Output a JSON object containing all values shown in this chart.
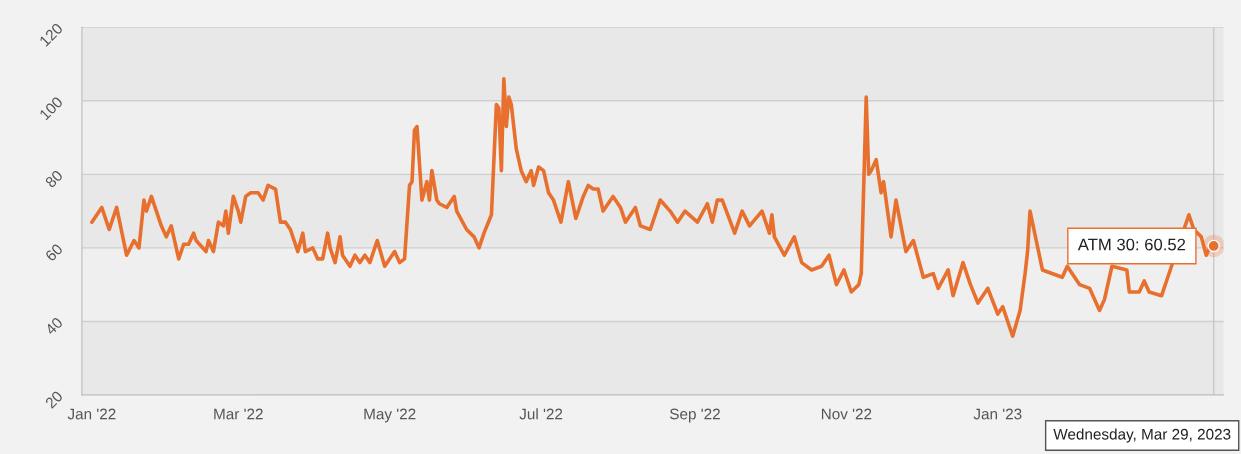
{
  "chart_data": {
    "type": "line",
    "x": [
      "2022-01-01",
      "2022-01-05",
      "2022-01-08",
      "2022-01-11",
      "2022-01-15",
      "2022-01-18",
      "2022-01-20",
      "2022-01-22",
      "2022-01-23",
      "2022-01-25",
      "2022-01-29",
      "2022-01-31",
      "2022-02-02",
      "2022-02-05",
      "2022-02-07",
      "2022-02-09",
      "2022-02-11",
      "2022-02-12",
      "2022-02-16",
      "2022-02-17",
      "2022-02-19",
      "2022-02-21",
      "2022-02-23",
      "2022-02-24",
      "2022-02-25",
      "2022-02-27",
      "2022-03-01",
      "2022-03-02",
      "2022-03-04",
      "2022-03-06",
      "2022-03-09",
      "2022-03-11",
      "2022-03-13",
      "2022-03-16",
      "2022-03-18",
      "2022-03-20",
      "2022-03-22",
      "2022-03-25",
      "2022-03-27",
      "2022-03-28",
      "2022-03-31",
      "2022-04-02",
      "2022-04-04",
      "2022-04-06",
      "2022-04-07",
      "2022-04-09",
      "2022-04-11",
      "2022-04-12",
      "2022-04-15",
      "2022-04-17",
      "2022-04-19",
      "2022-04-21",
      "2022-04-23",
      "2022-04-26",
      "2022-04-29",
      "2022-05-03",
      "2022-05-05",
      "2022-05-07",
      "2022-05-09",
      "2022-05-10",
      "2022-05-11",
      "2022-05-12",
      "2022-05-14",
      "2022-05-16",
      "2022-05-17",
      "2022-05-18",
      "2022-05-20",
      "2022-05-21",
      "2022-05-24",
      "2022-05-27",
      "2022-05-28",
      "2022-06-01",
      "2022-06-04",
      "2022-06-06",
      "2022-06-08",
      "2022-06-11",
      "2022-06-13",
      "2022-06-14",
      "2022-06-15",
      "2022-06-16",
      "2022-06-17",
      "2022-06-18",
      "2022-06-19",
      "2022-06-21",
      "2022-06-23",
      "2022-06-25",
      "2022-06-27",
      "2022-06-28",
      "2022-06-30",
      "2022-07-02",
      "2022-07-04",
      "2022-07-06",
      "2022-07-09",
      "2022-07-12",
      "2022-07-15",
      "2022-07-18",
      "2022-07-20",
      "2022-07-22",
      "2022-07-24",
      "2022-07-26",
      "2022-07-30",
      "2022-08-02",
      "2022-08-04",
      "2022-08-08",
      "2022-08-10",
      "2022-08-14",
      "2022-08-18",
      "2022-08-22",
      "2022-08-25",
      "2022-08-28",
      "2022-09-02",
      "2022-09-06",
      "2022-09-08",
      "2022-09-10",
      "2022-09-12",
      "2022-09-17",
      "2022-09-20",
      "2022-09-23",
      "2022-09-28",
      "2022-10-01",
      "2022-10-02",
      "2022-10-03",
      "2022-10-07",
      "2022-10-11",
      "2022-10-14",
      "2022-10-18",
      "2022-10-22",
      "2022-10-25",
      "2022-10-28",
      "2022-10-31",
      "2022-11-03",
      "2022-11-06",
      "2022-11-07",
      "2022-11-09",
      "2022-11-10",
      "2022-11-11",
      "2022-11-13",
      "2022-11-15",
      "2022-11-16",
      "2022-11-19",
      "2022-11-21",
      "2022-11-25",
      "2022-11-28",
      "2022-12-02",
      "2022-12-06",
      "2022-12-08",
      "2022-12-12",
      "2022-12-14",
      "2022-12-18",
      "2022-12-21",
      "2022-12-24",
      "2022-12-28",
      "2023-01-01",
      "2023-01-03",
      "2023-01-07",
      "2023-01-10",
      "2023-01-12",
      "2023-01-13",
      "2023-01-14",
      "2023-01-19",
      "2023-01-27",
      "2023-01-29",
      "2023-02-03",
      "2023-02-07",
      "2023-02-11",
      "2023-02-13",
      "2023-02-16",
      "2023-02-22",
      "2023-02-23",
      "2023-02-27",
      "2023-03-01",
      "2023-03-03",
      "2023-03-08",
      "2023-03-10",
      "2023-03-12",
      "2023-03-19",
      "2023-03-21",
      "2023-03-24",
      "2023-03-26",
      "2023-03-28",
      "2023-03-29"
    ],
    "series": [
      {
        "color": "#e8702f",
        "values": [
          67,
          71,
          65,
          71,
          58,
          62,
          60,
          73,
          70,
          74,
          66,
          63,
          66,
          57,
          61,
          61,
          64,
          62,
          59,
          62,
          59,
          67,
          66,
          70,
          64,
          74,
          70,
          67,
          74,
          75,
          75,
          73,
          77,
          76,
          67,
          67,
          65,
          59,
          64,
          59,
          60,
          57,
          57,
          64,
          60,
          56,
          63,
          58,
          55,
          58,
          56,
          58,
          56,
          62,
          55,
          59,
          56,
          57,
          77,
          78,
          92,
          93,
          73,
          78,
          73,
          81,
          73,
          72,
          71,
          74,
          70,
          65,
          63,
          60,
          64,
          69,
          99,
          98,
          81,
          106,
          93,
          101,
          99,
          87,
          81,
          78,
          81,
          77,
          82,
          81,
          75,
          73,
          67,
          78,
          68,
          74,
          77,
          76,
          76,
          70,
          74,
          71,
          67,
          71,
          66,
          65,
          73,
          70,
          67,
          70,
          67,
          72,
          67,
          73,
          73,
          64,
          70,
          66,
          70,
          64,
          69,
          63,
          58,
          63,
          56,
          54,
          55,
          58,
          50,
          54,
          48,
          50,
          53,
          101,
          80,
          81,
          84,
          75,
          78,
          63,
          73,
          59,
          62,
          52,
          53,
          49,
          54,
          47,
          56,
          50,
          45,
          49,
          42,
          44,
          36,
          43,
          53,
          59,
          70,
          54,
          52,
          55,
          50,
          49,
          43,
          46,
          55,
          54,
          48,
          48,
          51,
          48,
          47,
          51,
          55,
          69,
          65,
          63,
          58,
          61,
          60.52
        ]
      }
    ],
    "xlim": [
      "2021-12-28",
      "2023-04-02"
    ],
    "xticks": [
      {
        "value": "2022-01-01",
        "label": "Jan '22"
      },
      {
        "value": "2022-03-01",
        "label": "Mar '22"
      },
      {
        "value": "2022-05-01",
        "label": "May '22"
      },
      {
        "value": "2022-07-01",
        "label": "Jul '22"
      },
      {
        "value": "2022-09-01",
        "label": "Sep '22"
      },
      {
        "value": "2022-11-01",
        "label": "Nov '22"
      },
      {
        "value": "2023-01-01",
        "label": "Jan '23"
      }
    ],
    "ylim": [
      20,
      120
    ],
    "yticks": [
      20,
      40,
      60,
      80,
      100,
      120
    ],
    "grid": "y",
    "legend": false,
    "marker": "none",
    "line_style": "solid",
    "bands": [
      {
        "axis": "y",
        "from": 20,
        "to": 40,
        "color": "#e8e8e8"
      },
      {
        "axis": "y",
        "from": 60,
        "to": 80,
        "color": "#e8e8e8"
      },
      {
        "axis": "y",
        "from": 100,
        "to": 120,
        "color": "#e8e8e8"
      }
    ],
    "ref_lines": [
      {
        "axis": "x",
        "value": "2023-03-29",
        "color": "#c8c8c8",
        "line_style": "solid"
      }
    ],
    "annotations": [
      {
        "text": "ATM 30: 60.52",
        "x": "2023-03-29",
        "y": 60.52
      },
      "Wednesday, Mar 29, 2023"
    ]
  }
}
